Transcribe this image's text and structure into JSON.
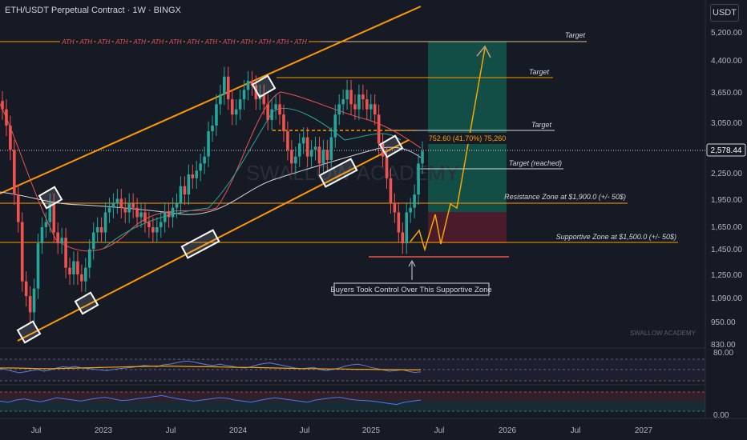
{
  "header": {
    "symbol_line": "ETH/USDT Perpetual Contract · 1W · BINGX",
    "currency": "USDT"
  },
  "watermark": "SWALLOW ACADEMY",
  "brand": "SWALLOW ACADEMY",
  "ath_label": "ATH",
  "price_tag": "2,578.44",
  "measure_label": "752.60 (41.70%) 75,260",
  "annotations": {
    "target_top": "Target",
    "target_2": "Target",
    "target_3": "Target",
    "target_reached": "Target (reached)",
    "resistance": "Resistance Zone at $1,900.0 (+/- 50$)",
    "support": "Supportive Zone at $1,500.0 (+/- 50$)",
    "buyers": "Buyers Took Control Over This Supportive Zone"
  },
  "colors": {
    "bg": "#161a25",
    "up": "#26a69a",
    "down": "#ef5350",
    "channel": "#ff9800",
    "target_zone": "#134e46",
    "stop_zone": "#4a1c2b",
    "rsi_line": "#7e57c2",
    "ma": "#f7a600"
  },
  "chart_data": [
    {
      "type": "candlestick",
      "title": "ETH/USDT Perpetual Contract · 1W · BINGX",
      "y_scale": "log",
      "ylim": [
        820,
        5600
      ],
      "y_ticks": [
        "5,200.00",
        "4,400.00",
        "3,650.00",
        "3,050.00",
        "2,250.00",
        "1,950.00",
        "1,650.00",
        "1,450.00",
        "1,250.00",
        "1,090.00",
        "950.00",
        "830.00"
      ],
      "x_ticks": [
        "Jul",
        "2023",
        "Jul",
        "2024",
        "Jul",
        "2025",
        "Jul",
        "2026",
        "Jul",
        "2027"
      ],
      "last_price": 2578.44,
      "levels": [
        {
          "name": "Target",
          "value": 4850
        },
        {
          "name": "Target",
          "value": 3950
        },
        {
          "name": "Target",
          "value": 3050
        },
        {
          "name": "Target (reached)",
          "value": 2400
        },
        {
          "name": "Resistance Zone at $1,900.0 (+/- 50$)",
          "value": 1900
        },
        {
          "name": "Supportive Zone at $1,500.0 (+/- 50$)",
          "value": 1500
        }
      ],
      "series_weekly_close": [
        3300,
        3000,
        2600,
        2000,
        1700,
        1200,
        1100,
        1000,
        1150,
        1500,
        1650,
        1700,
        1900,
        1600,
        1500,
        1550,
        1300,
        1250,
        1350,
        1250,
        1200,
        1300,
        1450,
        1600,
        1650,
        1600,
        1800,
        1850,
        1900,
        1950,
        1850,
        1800,
        1900,
        1850,
        1750,
        1800,
        1700,
        1650,
        1600,
        1650,
        1700,
        1800,
        1750,
        1850,
        1900,
        2100,
        2000,
        2250,
        2200,
        2300,
        2400,
        2500,
        2900,
        3000,
        3400,
        3600,
        4000,
        3500,
        3200,
        3300,
        3500,
        3700,
        3900,
        3800,
        3500,
        3600,
        3400,
        3100,
        3300,
        3400,
        3200,
        2900,
        2600,
        2400,
        2500,
        2700,
        2800,
        2500,
        2600,
        2650,
        2400,
        2600,
        2450,
        2800,
        3200,
        3400,
        3500,
        3700,
        3400,
        3300,
        3600,
        3500,
        3300,
        3400,
        3200,
        2700,
        2500,
        2200,
        1900,
        1800,
        1600,
        1500,
        1800,
        1850,
        2000,
        2400,
        2578
      ]
    },
    {
      "type": "line",
      "name": "RSI",
      "ylim": [
        0,
        100
      ],
      "y_ticks": [
        "80.00"
      ],
      "series": [
        {
          "values": [
            48,
            45,
            40,
            35,
            38,
            42,
            45,
            40,
            44,
            50,
            54,
            52,
            55,
            50,
            48,
            46,
            44,
            42,
            45,
            48,
            50,
            52,
            55,
            58,
            56,
            54,
            60,
            62,
            66,
            70,
            72,
            68,
            64,
            60,
            58,
            62,
            58,
            55,
            52,
            50,
            54,
            60,
            64,
            66,
            62,
            58,
            54,
            50,
            48,
            50,
            52,
            45,
            42,
            46,
            50,
            56,
            60,
            62,
            58,
            52,
            48,
            44,
            40,
            42,
            45,
            40,
            36,
            38
          ]
        }
      ],
      "ma_series": [
        {
          "values": [
            50,
            50,
            49,
            48,
            48,
            49,
            50,
            51,
            52,
            53,
            54,
            55,
            56,
            56,
            55,
            54,
            54,
            53,
            52,
            52,
            51,
            50,
            49,
            48,
            48,
            47,
            47,
            46,
            46,
            45,
            45,
            44,
            44
          ]
        }
      ]
    },
    {
      "type": "line",
      "name": "Oscillator",
      "ylim": [
        0,
        1
      ],
      "y_ticks": [
        "0.00"
      ],
      "series": [
        {
          "values": [
            0.45,
            0.4,
            0.5,
            0.55,
            0.48,
            0.42,
            0.5,
            0.6,
            0.55,
            0.5,
            0.45,
            0.52,
            0.58,
            0.62,
            0.55,
            0.48,
            0.5,
            0.56,
            0.6,
            0.65,
            0.7,
            0.62,
            0.55,
            0.5,
            0.45,
            0.5,
            0.55,
            0.6,
            0.58,
            0.5,
            0.45,
            0.4,
            0.48,
            0.55,
            0.6,
            0.55,
            0.5,
            0.45,
            0.4,
            0.5,
            0.55,
            0.6,
            0.62,
            0.55,
            0.5,
            0.48,
            0.45,
            0.4,
            0.35,
            0.3,
            0.4,
            0.45,
            0.5
          ]
        }
      ]
    }
  ]
}
